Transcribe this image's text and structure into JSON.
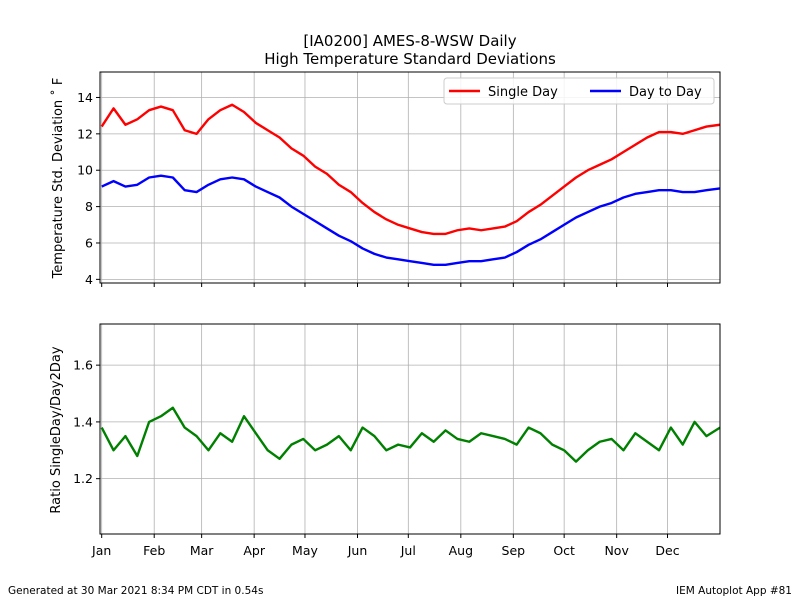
{
  "title_line1": "[IA0200] AMES-8-WSW Daily",
  "title_line2": "High Temperature Standard Deviations",
  "footer_left": "Generated at 30 Mar 2021 8:34 PM CDT in 0.54s",
  "footer_right": "IEM Autoplot App #81",
  "colors": {
    "single_day": "#ff0000",
    "day_to_day": "#0000ff",
    "ratio": "#008000",
    "grid": "#b0b0b0"
  },
  "chart_data": [
    {
      "type": "line",
      "ylabel": "Temperature Std. Deviation ˚ F",
      "ylim": [
        3.8,
        15.4
      ],
      "yticks": [
        4,
        6,
        8,
        10,
        12,
        14
      ],
      "xlim": [
        0,
        366
      ],
      "month_ticks": [
        1,
        32,
        60,
        91,
        121,
        152,
        182,
        213,
        244,
        274,
        305,
        335
      ],
      "grid": true,
      "legend_position": "top-right",
      "series": [
        {
          "name": "Single Day",
          "color": "#ff0000",
          "x": [
            1,
            8,
            15,
            22,
            29,
            36,
            43,
            50,
            57,
            64,
            71,
            78,
            85,
            92,
            99,
            106,
            113,
            120,
            127,
            134,
            141,
            148,
            155,
            162,
            169,
            176,
            183,
            190,
            197,
            204,
            211,
            218,
            225,
            232,
            239,
            246,
            253,
            260,
            267,
            274,
            281,
            288,
            295,
            302,
            309,
            316,
            323,
            330,
            337,
            344,
            351,
            358,
            366
          ],
          "values": [
            12.4,
            13.4,
            12.5,
            12.8,
            13.3,
            13.5,
            13.3,
            12.2,
            12.0,
            12.8,
            13.3,
            13.6,
            13.2,
            12.6,
            12.2,
            11.8,
            11.2,
            10.8,
            10.2,
            9.8,
            9.2,
            8.8,
            8.2,
            7.7,
            7.3,
            7.0,
            6.8,
            6.6,
            6.5,
            6.5,
            6.7,
            6.8,
            6.7,
            6.8,
            6.9,
            7.2,
            7.7,
            8.1,
            8.6,
            9.1,
            9.6,
            10.0,
            10.3,
            10.6,
            11.0,
            11.4,
            11.8,
            12.1,
            12.1,
            12.0,
            12.2,
            12.4,
            12.5
          ]
        },
        {
          "name": "Day to Day",
          "color": "#0000ff",
          "x": [
            1,
            8,
            15,
            22,
            29,
            36,
            43,
            50,
            57,
            64,
            71,
            78,
            85,
            92,
            99,
            106,
            113,
            120,
            127,
            134,
            141,
            148,
            155,
            162,
            169,
            176,
            183,
            190,
            197,
            204,
            211,
            218,
            225,
            232,
            239,
            246,
            253,
            260,
            267,
            274,
            281,
            288,
            295,
            302,
            309,
            316,
            323,
            330,
            337,
            344,
            351,
            358,
            366
          ],
          "values": [
            9.1,
            9.4,
            9.1,
            9.2,
            9.6,
            9.7,
            9.6,
            8.9,
            8.8,
            9.2,
            9.5,
            9.6,
            9.5,
            9.1,
            8.8,
            8.5,
            8.0,
            7.6,
            7.2,
            6.8,
            6.4,
            6.1,
            5.7,
            5.4,
            5.2,
            5.1,
            5.0,
            4.9,
            4.8,
            4.8,
            4.9,
            5.0,
            5.0,
            5.1,
            5.2,
            5.5,
            5.9,
            6.2,
            6.6,
            7.0,
            7.4,
            7.7,
            8.0,
            8.2,
            8.5,
            8.7,
            8.8,
            8.9,
            8.9,
            8.8,
            8.8,
            8.9,
            9.0
          ]
        }
      ]
    },
    {
      "type": "line",
      "ylabel": "Ratio SingleDay/Day2Day",
      "ylim": [
        1.005,
        1.745
      ],
      "yticks": [
        1.2,
        1.4,
        1.6
      ],
      "xlim": [
        0,
        366
      ],
      "grid": true,
      "series": [
        {
          "color": "#008000",
          "x": [
            1,
            8,
            15,
            22,
            29,
            36,
            43,
            50,
            57,
            64,
            71,
            78,
            85,
            92,
            99,
            106,
            113,
            120,
            127,
            134,
            141,
            148,
            155,
            162,
            169,
            176,
            183,
            190,
            197,
            204,
            211,
            218,
            225,
            232,
            239,
            246,
            253,
            260,
            267,
            274,
            281,
            288,
            295,
            302,
            309,
            316,
            323,
            330,
            337,
            344,
            351,
            358,
            366
          ],
          "values": [
            1.38,
            1.3,
            1.35,
            1.28,
            1.4,
            1.42,
            1.45,
            1.38,
            1.35,
            1.3,
            1.36,
            1.33,
            1.42,
            1.36,
            1.3,
            1.27,
            1.32,
            1.34,
            1.3,
            1.32,
            1.35,
            1.3,
            1.38,
            1.35,
            1.3,
            1.32,
            1.31,
            1.36,
            1.33,
            1.37,
            1.34,
            1.33,
            1.36,
            1.35,
            1.34,
            1.32,
            1.38,
            1.36,
            1.32,
            1.3,
            1.26,
            1.3,
            1.33,
            1.34,
            1.3,
            1.36,
            1.33,
            1.3,
            1.38,
            1.32,
            1.4,
            1.35,
            1.38
          ]
        }
      ]
    }
  ]
}
